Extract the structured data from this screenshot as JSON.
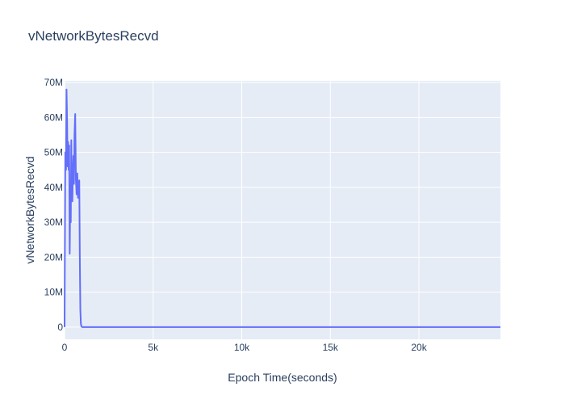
{
  "chart_data": {
    "type": "line",
    "title": "vNetworkBytesRecvd",
    "xlabel": "Epoch Time(seconds)",
    "ylabel": "vNetworkBytesRecvd",
    "xlim": [
      0,
      24600
    ],
    "ylim": [
      -3500000,
      70500000
    ],
    "x_ticks": [
      0,
      5000,
      10000,
      15000,
      20000
    ],
    "x_tick_labels": [
      "0",
      "5k",
      "10k",
      "15k",
      "20k"
    ],
    "y_ticks": [
      0,
      10000000,
      20000000,
      30000000,
      40000000,
      50000000,
      60000000,
      70000000
    ],
    "y_tick_labels": [
      "0",
      "10M",
      "20M",
      "30M",
      "40M",
      "50M",
      "60M",
      "70M"
    ],
    "grid": true,
    "colors": {
      "line": "#636efa",
      "plot_bg": "#e5ecf6",
      "grid": "#ffffff",
      "text": "#2a3f5f"
    },
    "series": [
      {
        "x": [
          0,
          40,
          80,
          110,
          140,
          170,
          200,
          230,
          260,
          290,
          320,
          350,
          380,
          410,
          440,
          470,
          500,
          530,
          560,
          600,
          640,
          680,
          720,
          760,
          800,
          830,
          860,
          890,
          920,
          950,
          1000,
          24600
        ],
        "y": [
          0,
          50000000,
          45000000,
          68000000,
          60000000,
          46000000,
          53000000,
          45000000,
          52000000,
          21000000,
          38000000,
          30000000,
          53500000,
          40000000,
          36000000,
          44000000,
          49000000,
          41000000,
          55000000,
          61000000,
          42000000,
          38000000,
          44000000,
          37000000,
          40000000,
          42000000,
          20000000,
          5000000,
          1000000,
          200000,
          0,
          0
        ]
      }
    ]
  }
}
